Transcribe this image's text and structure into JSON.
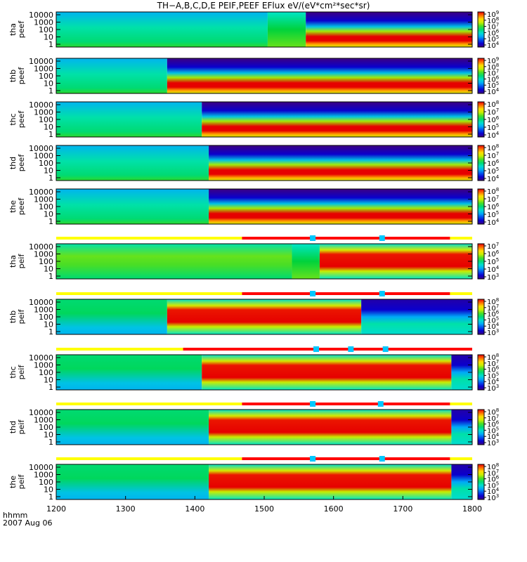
{
  "chart_data": {
    "type": "heatmap",
    "title": "TH−A,B,C,D,E  PEIF,PEEF  EFlux  eV/(eV*cm²*sec*sr)",
    "x_axis": {
      "ticks": [
        "1200",
        "1300",
        "1400",
        "1500",
        "1600",
        "1700",
        "1800"
      ],
      "range": [
        1200,
        1800
      ],
      "row_label": "hhmm",
      "date_label": "2007 Aug 06"
    },
    "panels": [
      {
        "probe": "tha",
        "product": "peef",
        "yticks": [
          "10000",
          "1000",
          "100",
          "10",
          "1"
        ],
        "cb_exp": [
          4,
          5,
          6,
          7,
          8,
          9
        ],
        "profile": [
          [
            1200,
            "quiet"
          ],
          [
            1505,
            "transition"
          ],
          [
            1560,
            "sheath"
          ],
          [
            1800,
            "sheath"
          ]
        ]
      },
      {
        "probe": "thb",
        "product": "peef",
        "yticks": [
          "10000",
          "1000",
          "100",
          "10",
          "1"
        ],
        "cb_exp": [
          4,
          5,
          6,
          7,
          8,
          9
        ],
        "profile": [
          [
            1200,
            "quiet"
          ],
          [
            1360,
            "sheath"
          ],
          [
            1800,
            "sheath"
          ]
        ]
      },
      {
        "probe": "thc",
        "product": "peef",
        "yticks": [
          "10000",
          "1000",
          "100",
          "10",
          "1"
        ],
        "cb_exp": [
          4,
          5,
          6,
          7,
          8
        ],
        "profile": [
          [
            1200,
            "quiet"
          ],
          [
            1410,
            "sheath"
          ],
          [
            1800,
            "sheath"
          ]
        ]
      },
      {
        "probe": "thd",
        "product": "peef",
        "yticks": [
          "10000",
          "1000",
          "100",
          "10",
          "1"
        ],
        "cb_exp": [
          4,
          5,
          6,
          7,
          8
        ],
        "profile": [
          [
            1200,
            "quiet"
          ],
          [
            1420,
            "sheath"
          ],
          [
            1800,
            "sheath"
          ]
        ]
      },
      {
        "probe": "the",
        "product": "peef",
        "yticks": [
          "10000",
          "1000",
          "100",
          "10",
          "1"
        ],
        "cb_exp": [
          4,
          5,
          6,
          7,
          8
        ],
        "profile": [
          [
            1200,
            "quiet"
          ],
          [
            1420,
            "sheath"
          ],
          [
            1800,
            "sheath"
          ]
        ]
      },
      {
        "probe": "tha",
        "product": "peif",
        "yticks": [
          "10000",
          "1000",
          "100",
          "10",
          "1"
        ],
        "cb_exp": [
          3,
          4,
          5,
          6,
          7
        ],
        "profile": [
          [
            1200,
            "ionwarm"
          ],
          [
            1540,
            "transition"
          ],
          [
            1580,
            "ionsheath"
          ],
          [
            1800,
            "ionsheath"
          ]
        ]
      },
      {
        "probe": "thb",
        "product": "peif",
        "yticks": [
          "10000",
          "1000",
          "100",
          "10",
          "1"
        ],
        "cb_exp": [
          3,
          4,
          5,
          6,
          7,
          8
        ],
        "profile": [
          [
            1200,
            "ionquiet"
          ],
          [
            1360,
            "ionsheath"
          ],
          [
            1640,
            "ionsparse"
          ],
          [
            1800,
            "ionsparse"
          ]
        ]
      },
      {
        "probe": "thc",
        "product": "peif",
        "yticks": [
          "10000",
          "1000",
          "100",
          "10",
          "1"
        ],
        "cb_exp": [
          3,
          4,
          5,
          6,
          7,
          8
        ],
        "profile": [
          [
            1200,
            "ionquiet"
          ],
          [
            1410,
            "ionsheath"
          ],
          [
            1770,
            "ionsparse"
          ],
          [
            1800,
            "ionsparse"
          ]
        ]
      },
      {
        "probe": "thd",
        "product": "peif",
        "yticks": [
          "10000",
          "1000",
          "100",
          "10",
          "1"
        ],
        "cb_exp": [
          3,
          4,
          5,
          6,
          7,
          8
        ],
        "profile": [
          [
            1200,
            "ionquiet"
          ],
          [
            1420,
            "ionsheath"
          ],
          [
            1770,
            "ionsparse"
          ],
          [
            1800,
            "ionsparse"
          ]
        ]
      },
      {
        "probe": "the",
        "product": "peif",
        "yticks": [
          "10000",
          "1000",
          "100",
          "10",
          "1"
        ],
        "cb_exp": [
          3,
          4,
          5,
          6,
          7,
          8
        ],
        "profile": [
          [
            1200,
            "ionquiet"
          ],
          [
            1420,
            "ionsheath"
          ],
          [
            1770,
            "ionsparse"
          ],
          [
            1800,
            "ionsparse"
          ]
        ]
      }
    ],
    "mode_bars": [
      {
        "before_panel": 5,
        "segments": [
          [
            "yellow",
            1200,
            1468
          ],
          [
            "red",
            1468,
            1768
          ],
          [
            "yellow",
            1768,
            1800
          ]
        ],
        "markers": [
          1570,
          1670
        ]
      },
      {
        "before_panel": 6,
        "segments": [
          [
            "yellow",
            1200,
            1468
          ],
          [
            "red",
            1468,
            1768
          ],
          [
            "yellow",
            1768,
            1800
          ]
        ],
        "markers": [
          1570,
          1670
        ]
      },
      {
        "before_panel": 7,
        "segments": [
          [
            "yellow",
            1200,
            1383
          ],
          [
            "red",
            1383,
            1800
          ]
        ],
        "markers": [
          1575,
          1625,
          1675
        ]
      },
      {
        "before_panel": 8,
        "segments": [
          [
            "yellow",
            1200,
            1468
          ],
          [
            "red",
            1468,
            1768
          ],
          [
            "yellow",
            1768,
            1800
          ]
        ],
        "markers": [
          1570,
          1668
        ]
      },
      {
        "before_panel": 9,
        "segments": [
          [
            "yellow",
            1200,
            1468
          ],
          [
            "red",
            1468,
            1768
          ],
          [
            "yellow",
            1768,
            1800
          ]
        ],
        "markers": [
          1570,
          1670
        ]
      }
    ],
    "colors": {
      "yellow": "#ffff00",
      "red": "#ff0000",
      "marker": "#00c8ff"
    }
  }
}
